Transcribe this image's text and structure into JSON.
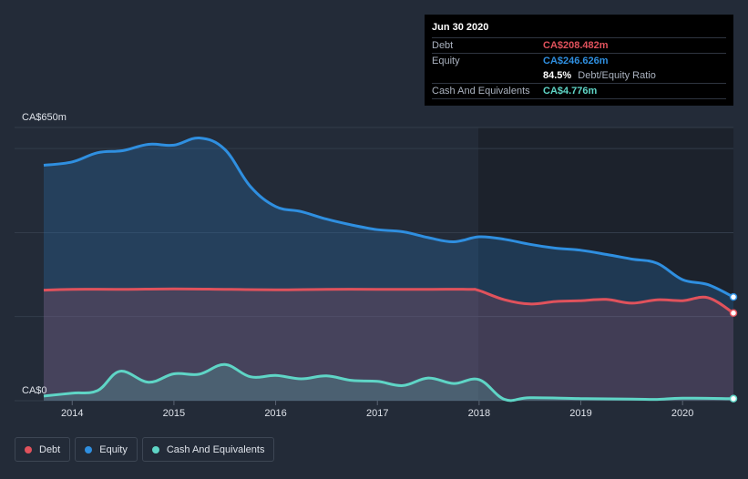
{
  "chart_data": {
    "type": "area",
    "y_top_label": "CA$650m",
    "y_bottom_label": "CA$0",
    "ylim": [
      0,
      650
    ],
    "xlim": [
      2013.72,
      2020.5
    ],
    "x_ticks": [
      2014,
      2015,
      2016,
      2017,
      2018,
      2019,
      2020
    ],
    "x_tick_labels": [
      "2014",
      "2015",
      "2016",
      "2017",
      "2018",
      "2019",
      "2020"
    ],
    "series": [
      {
        "name": "Equity",
        "color": "#2f8fe0",
        "x": [
          2013.72,
          2014.0,
          2014.25,
          2014.5,
          2014.75,
          2015.0,
          2015.25,
          2015.5,
          2015.75,
          2016.0,
          2016.25,
          2016.5,
          2016.75,
          2017.0,
          2017.25,
          2017.5,
          2017.75,
          2018.0,
          2018.25,
          2018.5,
          2018.75,
          2019.0,
          2019.25,
          2019.5,
          2019.75,
          2020.0,
          2020.25,
          2020.5
        ],
        "values": [
          560,
          568,
          590,
          595,
          610,
          608,
          625,
          598,
          510,
          462,
          450,
          432,
          418,
          407,
          402,
          388,
          378,
          390,
          384,
          372,
          363,
          358,
          348,
          337,
          327,
          288,
          276,
          246.626
        ]
      },
      {
        "name": "Debt",
        "color": "#e0525c",
        "x": [
          2013.72,
          2014.0,
          2014.5,
          2015.0,
          2015.5,
          2016.0,
          2016.5,
          2017.0,
          2017.5,
          2017.9,
          2018.0,
          2018.25,
          2018.5,
          2018.75,
          2019.0,
          2019.25,
          2019.5,
          2019.75,
          2020.0,
          2020.25,
          2020.5
        ],
        "values": [
          263,
          265,
          265,
          266,
          265,
          264,
          265,
          265,
          265,
          265,
          262,
          240,
          230,
          236,
          238,
          241,
          232,
          240,
          238,
          245,
          208.482
        ]
      },
      {
        "name": "Cash And Equivalents",
        "color": "#5fd5c6",
        "x": [
          2013.72,
          2014.0,
          2014.25,
          2014.47,
          2014.75,
          2015.0,
          2015.25,
          2015.5,
          2015.75,
          2016.0,
          2016.25,
          2016.5,
          2016.75,
          2017.0,
          2017.25,
          2017.5,
          2017.75,
          2018.0,
          2018.25,
          2018.5,
          2019.0,
          2019.5,
          2019.75,
          2020.0,
          2020.5
        ],
        "values": [
          11,
          18,
          24,
          70,
          44,
          64,
          63,
          86,
          57,
          60,
          52,
          59,
          48,
          46,
          36,
          54,
          41,
          50,
          3,
          7,
          5,
          4,
          3,
          6,
          4.776
        ]
      }
    ],
    "legend": [
      "Debt",
      "Equity",
      "Cash And Equivalents"
    ],
    "legend_colors": [
      "#e0525c",
      "#2f8fe0",
      "#5fd5c6"
    ]
  },
  "tooltip": {
    "date": "Jun 30 2020",
    "debt_label": "Debt",
    "debt_value": "CA$208.482m",
    "equity_label": "Equity",
    "equity_value": "CA$246.626m",
    "ratio_value": "84.5%",
    "ratio_label": "Debt/Equity Ratio",
    "cash_label": "Cash And Equivalents",
    "cash_value": "CA$4.776m",
    "debt_color": "#e0525c",
    "equity_color": "#2f8fe0",
    "cash_color": "#5fd5c6"
  },
  "legend": {
    "debt_label": "Debt",
    "equity_label": "Equity",
    "cash_label": "Cash And Equivalents"
  }
}
